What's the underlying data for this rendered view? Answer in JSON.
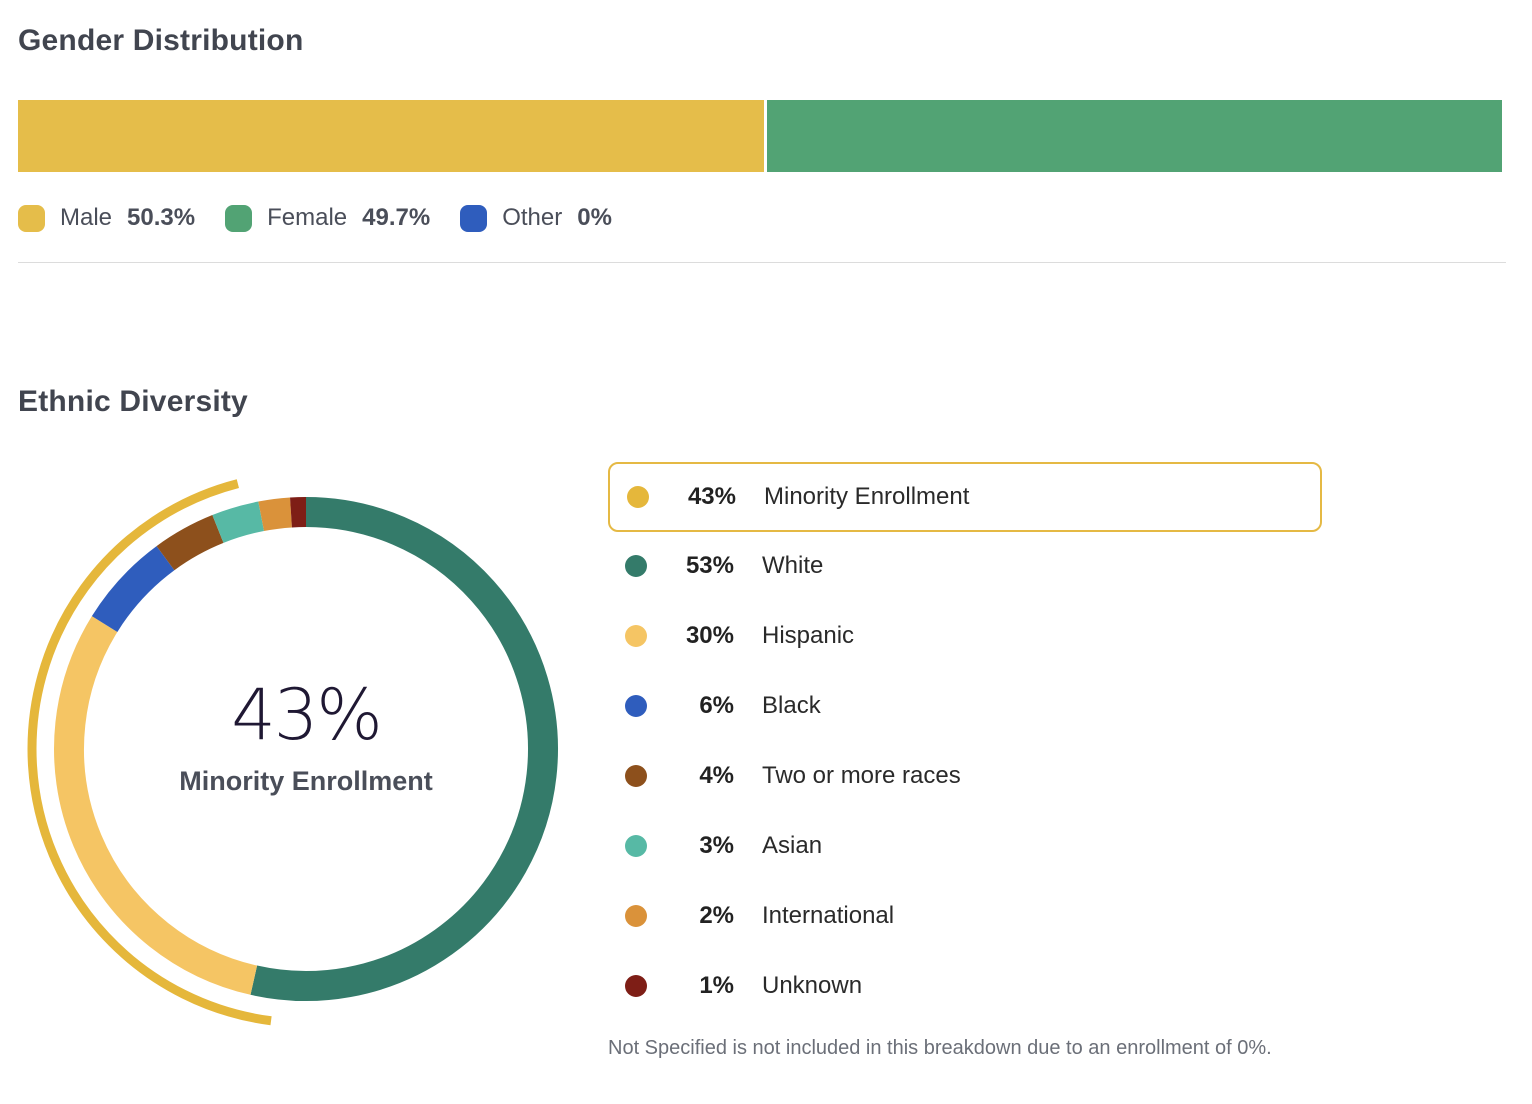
{
  "gender": {
    "title": "Gender Distribution",
    "items": [
      {
        "label": "Male",
        "value": "50.3%",
        "percent": 50.3,
        "color": "#e5bd4a"
      },
      {
        "label": "Female",
        "value": "49.7%",
        "percent": 49.7,
        "color": "#52a374"
      },
      {
        "label": "Other",
        "value": "0%",
        "percent": 0,
        "color": "#2f5dbd"
      }
    ]
  },
  "ethnic": {
    "title": "Ethnic Diversity",
    "center_value": "43%",
    "center_label": "Minority Enrollment",
    "legend": [
      {
        "pct": "43%",
        "label": "Minority Enrollment",
        "color": "#e5b73b",
        "highlighted": true
      },
      {
        "pct": "53%",
        "label": "White",
        "color": "#347b6a"
      },
      {
        "pct": "30%",
        "label": "Hispanic",
        "color": "#f5c564"
      },
      {
        "pct": "6%",
        "label": "Black",
        "color": "#2f5dbd"
      },
      {
        "pct": "4%",
        "label": "Two or more races",
        "color": "#8d501c"
      },
      {
        "pct": "3%",
        "label": "Asian",
        "color": "#57b9a5"
      },
      {
        "pct": "2%",
        "label": "International",
        "color": "#da923a"
      },
      {
        "pct": "1%",
        "label": "Unknown",
        "color": "#7e1e16"
      }
    ],
    "footnote": "Not Specified is not included in this breakdown due to an enrollment of 0%."
  },
  "chart_data": {
    "type": "pie",
    "title": "Ethnic Diversity",
    "categories": [
      "White",
      "Hispanic",
      "Black",
      "Two or more races",
      "Asian",
      "International",
      "Unknown"
    ],
    "values": [
      53,
      30,
      6,
      4,
      3,
      2,
      1
    ],
    "colors": [
      "#347b6a",
      "#f5c564",
      "#2f5dbd",
      "#8d501c",
      "#57b9a5",
      "#da923a",
      "#7e1e16"
    ],
    "highlight": {
      "label": "Minority Enrollment",
      "value": 43,
      "color": "#e5b73b"
    },
    "legend_position": "right"
  }
}
